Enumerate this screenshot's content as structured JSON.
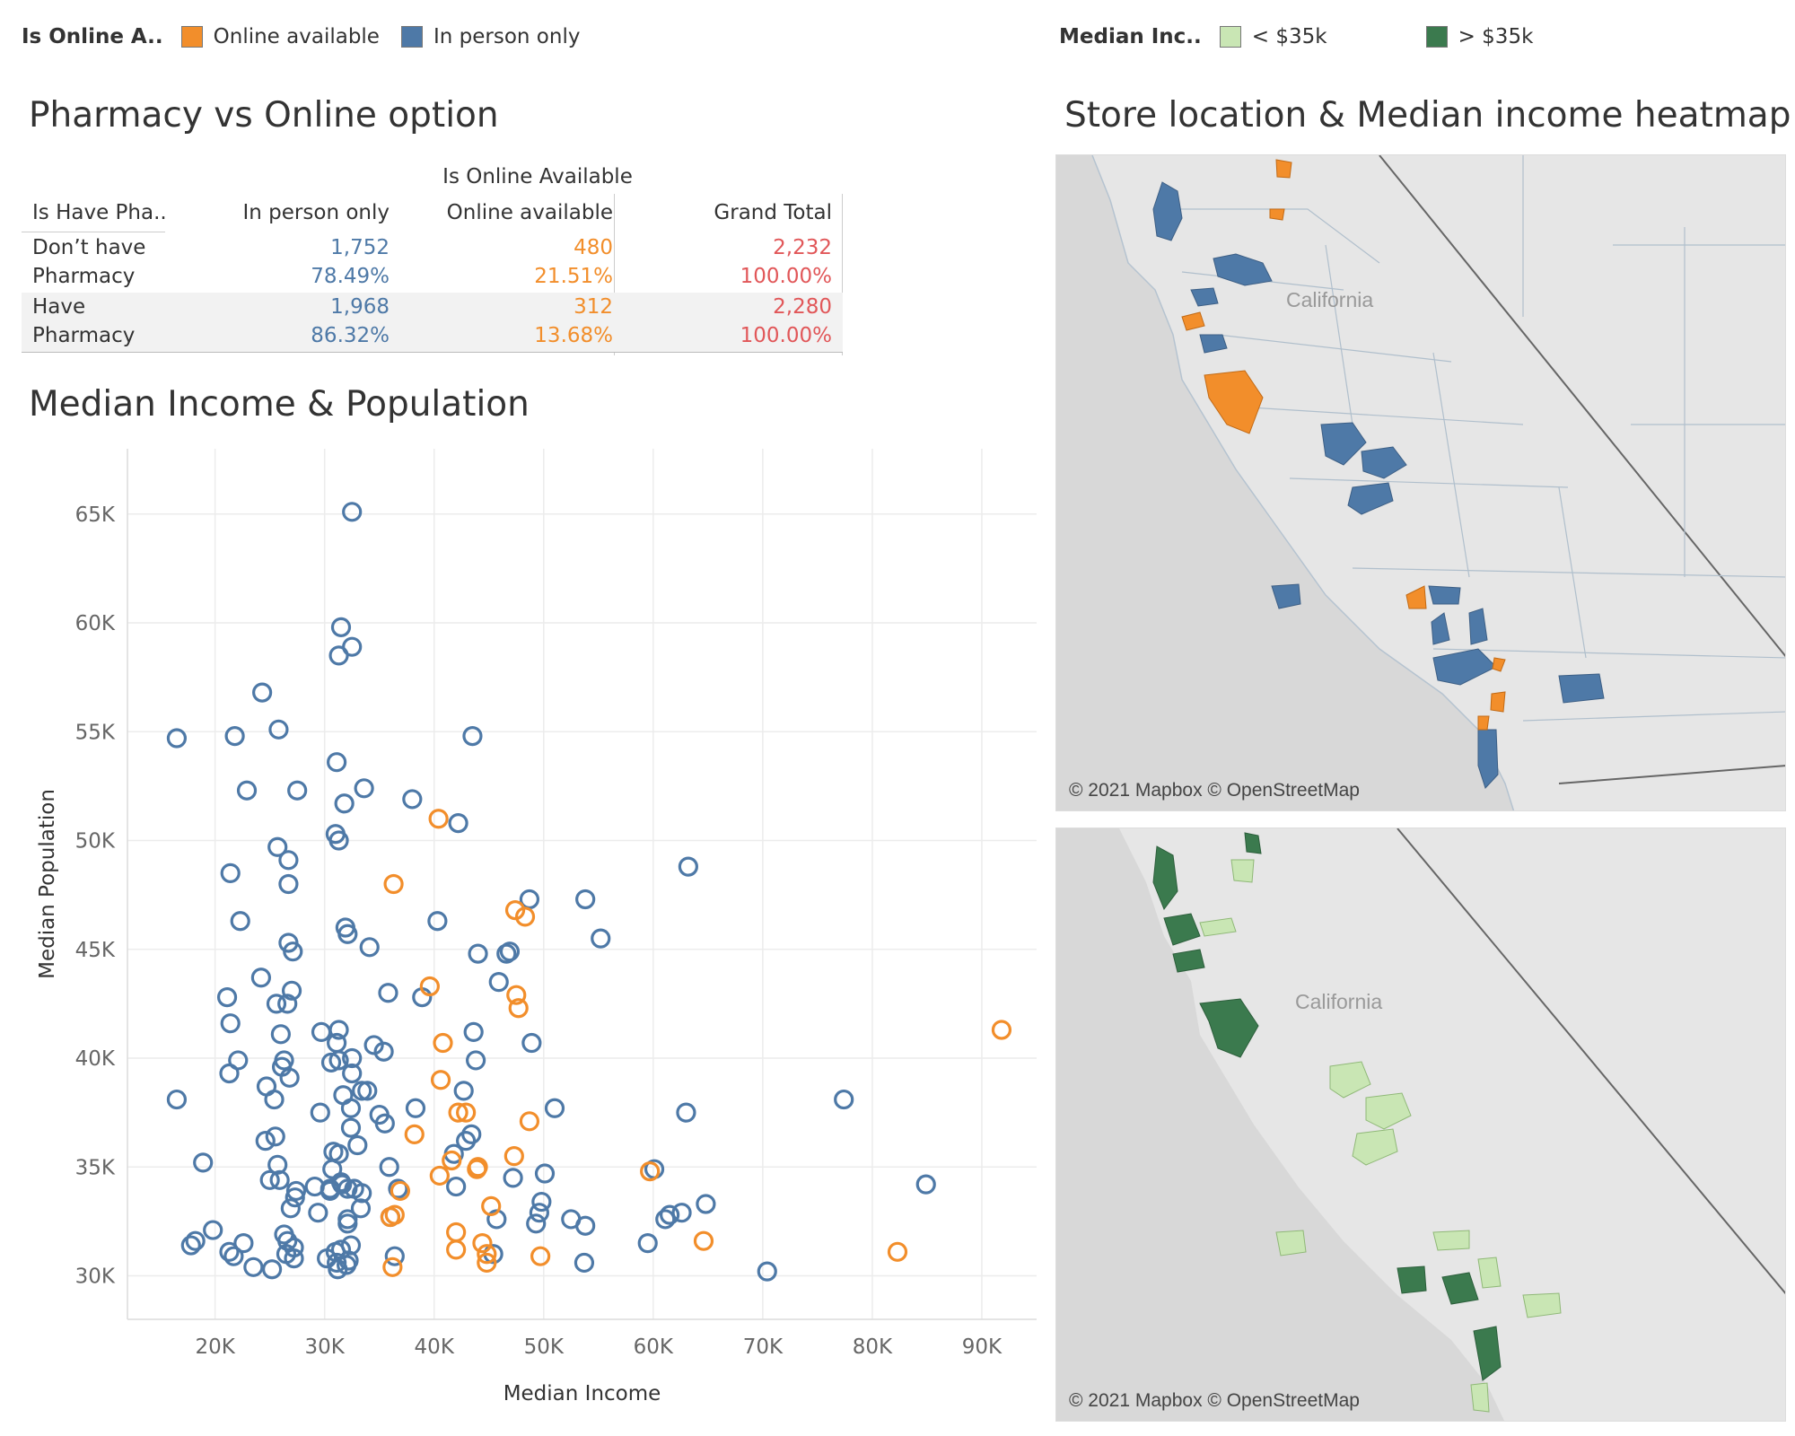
{
  "legend_online": {
    "title": "Is Online A..",
    "items": [
      {
        "label": "Online available",
        "color": "#f28e2b"
      },
      {
        "label": "In person only",
        "color": "#4e79a7"
      }
    ]
  },
  "legend_income": {
    "title": "Median Inc..",
    "items": [
      {
        "label": "< $35k",
        "color": "#c9e6b4"
      },
      {
        "label": "> $35k",
        "color": "#3b7a4e"
      }
    ]
  },
  "crosstab": {
    "title": "Pharmacy vs Online option",
    "column_group": "Is Online Available",
    "row_header": "Is Have Pha..",
    "columns": [
      "In person only",
      "Online available",
      "Grand Total"
    ],
    "rows": [
      {
        "label1": "Don’t have",
        "label2": "Pharmacy",
        "in_person_count": "1,752",
        "in_person_pct": "78.49%",
        "online_count": "480",
        "online_pct": "21.51%",
        "total_count": "2,232",
        "total_pct": "100.00%"
      },
      {
        "label1": "Have",
        "label2": "Pharmacy",
        "in_person_count": "1,968",
        "in_person_pct": "86.32%",
        "online_count": "312",
        "online_pct": "13.68%",
        "total_count": "2,280",
        "total_pct": "100.00%"
      }
    ]
  },
  "scatter": {
    "title": "Median Income & Population"
  },
  "map": {
    "title": "Store location & Median income heatmap",
    "state_label": "California",
    "attribution": "© 2021 Mapbox © OpenStreetMap"
  },
  "chart_data": {
    "type": "scatter",
    "xlabel": "Median Income",
    "ylabel": "Median Population",
    "xlim": [
      12000,
      95000
    ],
    "ylim": [
      28000,
      68000
    ],
    "xticks": [
      20000,
      30000,
      40000,
      50000,
      60000,
      70000,
      80000,
      90000
    ],
    "xtick_labels": [
      "20K",
      "30K",
      "40K",
      "50K",
      "60K",
      "70K",
      "80K",
      "90K"
    ],
    "yticks": [
      30000,
      35000,
      40000,
      45000,
      50000,
      55000,
      60000,
      65000
    ],
    "ytick_labels": [
      "30K",
      "35K",
      "40K",
      "45K",
      "50K",
      "55K",
      "60K",
      "65K"
    ],
    "grid": true,
    "series": [
      {
        "name": "In person only",
        "color": "#4e79a7",
        "points": [
          [
            32500,
            65100
          ],
          [
            31500,
            59800
          ],
          [
            32500,
            58900
          ],
          [
            31300,
            58500
          ],
          [
            24300,
            56800
          ],
          [
            16500,
            54700
          ],
          [
            21800,
            54800
          ],
          [
            25800,
            55100
          ],
          [
            43500,
            54800
          ],
          [
            31100,
            53600
          ],
          [
            22900,
            52300
          ],
          [
            27500,
            52300
          ],
          [
            33600,
            52400
          ],
          [
            31800,
            51700
          ],
          [
            38000,
            51900
          ],
          [
            42200,
            50800
          ],
          [
            31000,
            50300
          ],
          [
            31300,
            50000
          ],
          [
            25700,
            49700
          ],
          [
            21400,
            48500
          ],
          [
            26700,
            49100
          ],
          [
            26700,
            48000
          ],
          [
            63200,
            48800
          ],
          [
            48700,
            47300
          ],
          [
            53800,
            47300
          ],
          [
            22300,
            46300
          ],
          [
            40300,
            46300
          ],
          [
            31900,
            46000
          ],
          [
            32100,
            45700
          ],
          [
            55200,
            45500
          ],
          [
            26700,
            45300
          ],
          [
            27100,
            44900
          ],
          [
            34100,
            45100
          ],
          [
            44000,
            44800
          ],
          [
            46600,
            44800
          ],
          [
            46900,
            44900
          ],
          [
            24200,
            43700
          ],
          [
            45900,
            43500
          ],
          [
            21100,
            42800
          ],
          [
            25600,
            42500
          ],
          [
            26600,
            42500
          ],
          [
            27000,
            43100
          ],
          [
            35800,
            43000
          ],
          [
            38900,
            42800
          ],
          [
            21400,
            41600
          ],
          [
            26000,
            41100
          ],
          [
            29700,
            41200
          ],
          [
            31300,
            41300
          ],
          [
            31100,
            40700
          ],
          [
            34500,
            40600
          ],
          [
            43600,
            41200
          ],
          [
            48900,
            40700
          ],
          [
            22100,
            39900
          ],
          [
            26300,
            39900
          ],
          [
            26100,
            39600
          ],
          [
            32500,
            40000
          ],
          [
            35400,
            40300
          ],
          [
            43800,
            39900
          ],
          [
            21300,
            39300
          ],
          [
            26800,
            39100
          ],
          [
            30600,
            39800
          ],
          [
            31300,
            39900
          ],
          [
            32500,
            39300
          ],
          [
            24700,
            38700
          ],
          [
            25400,
            38100
          ],
          [
            31700,
            38300
          ],
          [
            33400,
            38500
          ],
          [
            33900,
            38500
          ],
          [
            42700,
            38500
          ],
          [
            16500,
            38100
          ],
          [
            29600,
            37500
          ],
          [
            32400,
            37700
          ],
          [
            35000,
            37400
          ],
          [
            38300,
            37700
          ],
          [
            51000,
            37700
          ],
          [
            63000,
            37500
          ],
          [
            77400,
            38100
          ],
          [
            25500,
            36400
          ],
          [
            24600,
            36200
          ],
          [
            32400,
            36800
          ],
          [
            35500,
            37000
          ],
          [
            42900,
            36200
          ],
          [
            43400,
            36500
          ],
          [
            30800,
            35700
          ],
          [
            31300,
            35600
          ],
          [
            33000,
            36000
          ],
          [
            41800,
            35600
          ],
          [
            18900,
            35200
          ],
          [
            25700,
            35100
          ],
          [
            30700,
            34900
          ],
          [
            35900,
            35000
          ],
          [
            60100,
            34900
          ],
          [
            84900,
            34200
          ],
          [
            25000,
            34400
          ],
          [
            25900,
            34400
          ],
          [
            30500,
            34000
          ],
          [
            31500,
            34300
          ],
          [
            32100,
            34000
          ],
          [
            33400,
            33800
          ],
          [
            36700,
            34000
          ],
          [
            42000,
            34100
          ],
          [
            47200,
            34500
          ],
          [
            50100,
            34700
          ],
          [
            27300,
            33600
          ],
          [
            27400,
            33900
          ],
          [
            29100,
            34100
          ],
          [
            30500,
            33900
          ],
          [
            31600,
            34200
          ],
          [
            32700,
            34000
          ],
          [
            49800,
            33400
          ],
          [
            64800,
            33300
          ],
          [
            26900,
            33100
          ],
          [
            29400,
            32900
          ],
          [
            32100,
            32600
          ],
          [
            33300,
            33100
          ],
          [
            36000,
            32700
          ],
          [
            45700,
            32600
          ],
          [
            49600,
            32900
          ],
          [
            52500,
            32600
          ],
          [
            53800,
            32300
          ],
          [
            61100,
            32600
          ],
          [
            61500,
            32800
          ],
          [
            62600,
            32900
          ],
          [
            49300,
            32400
          ],
          [
            18200,
            31600
          ],
          [
            19800,
            32100
          ],
          [
            26300,
            31900
          ],
          [
            26600,
            31600
          ],
          [
            32100,
            32400
          ],
          [
            17800,
            31400
          ],
          [
            21300,
            31100
          ],
          [
            22600,
            31500
          ],
          [
            27200,
            31300
          ],
          [
            31000,
            31100
          ],
          [
            31500,
            31200
          ],
          [
            32400,
            31400
          ],
          [
            45400,
            31000
          ],
          [
            59500,
            31500
          ],
          [
            21700,
            30900
          ],
          [
            26500,
            31000
          ],
          [
            27200,
            30800
          ],
          [
            30200,
            30800
          ],
          [
            31100,
            30600
          ],
          [
            32200,
            30700
          ],
          [
            36400,
            30900
          ],
          [
            23500,
            30400
          ],
          [
            25200,
            30300
          ],
          [
            31200,
            30300
          ],
          [
            32000,
            30500
          ],
          [
            53700,
            30600
          ],
          [
            70400,
            30200
          ]
        ]
      },
      {
        "name": "Online available",
        "color": "#f28e2b",
        "points": [
          [
            91800,
            41300
          ],
          [
            40400,
            51000
          ],
          [
            36300,
            48000
          ],
          [
            47400,
            46800
          ],
          [
            48300,
            46500
          ],
          [
            39600,
            43300
          ],
          [
            47500,
            42900
          ],
          [
            47700,
            42300
          ],
          [
            40800,
            40700
          ],
          [
            40600,
            39000
          ],
          [
            42200,
            37500
          ],
          [
            42900,
            37500
          ],
          [
            48700,
            37100
          ],
          [
            38200,
            36500
          ],
          [
            47300,
            35500
          ],
          [
            41600,
            35300
          ],
          [
            40500,
            34600
          ],
          [
            43900,
            34900
          ],
          [
            44000,
            35000
          ],
          [
            59700,
            34800
          ],
          [
            36900,
            33900
          ],
          [
            36400,
            32800
          ],
          [
            45200,
            33200
          ],
          [
            36000,
            32700
          ],
          [
            42000,
            32000
          ],
          [
            64600,
            31600
          ],
          [
            44400,
            31500
          ],
          [
            42000,
            31200
          ],
          [
            82300,
            31100
          ],
          [
            49700,
            30900
          ],
          [
            44800,
            30600
          ],
          [
            36200,
            30400
          ],
          [
            44800,
            31000
          ]
        ]
      }
    ]
  }
}
